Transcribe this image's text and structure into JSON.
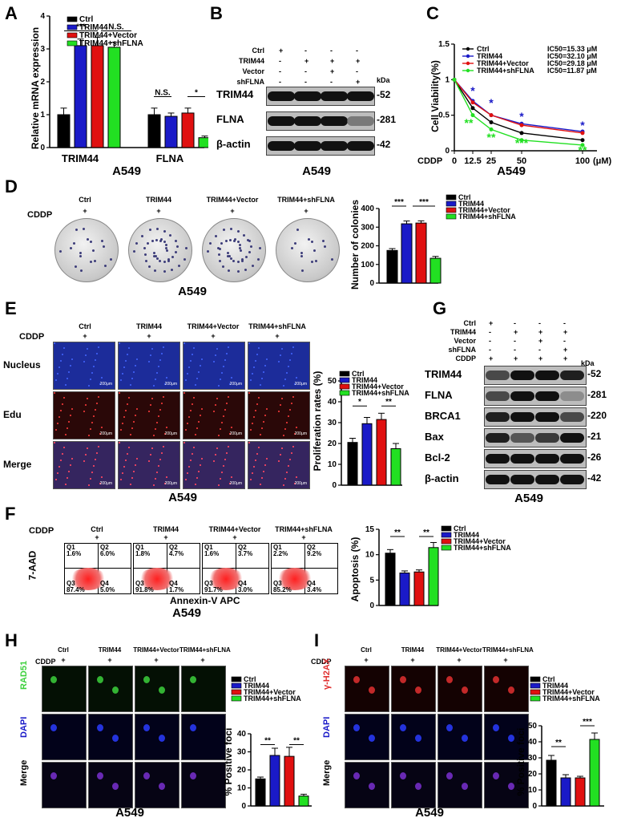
{
  "groups": [
    "Ctrl",
    "TRIM44",
    "TRIM44+Vector",
    "TRIM44+shFLNA"
  ],
  "colors": {
    "ctrl": "#000000",
    "trim44": "#1a1ac8",
    "vector": "#e01010",
    "shflna": "#22e022"
  },
  "cell_line": "A549",
  "panelA": {
    "letter": "A",
    "ylabel": "Relative mRNA expression",
    "caption": "A549",
    "sig": [
      "***",
      "N.S.",
      "N.S.",
      "*"
    ]
  },
  "panelB": {
    "letter": "B",
    "caption": "A549",
    "rows": [
      "Ctrl",
      "TRIM44",
      "Vector",
      "shFLNA"
    ],
    "signs": [
      [
        "+",
        "-",
        "-",
        "-"
      ],
      [
        "-",
        "+",
        "+",
        "+"
      ],
      [
        "-",
        "-",
        "+",
        "-"
      ],
      [
        "-",
        "-",
        "-",
        "+"
      ]
    ],
    "kda": "kDa",
    "proteins": [
      "TRIM44",
      "FLNA",
      "β-actin"
    ],
    "sizes": [
      "52",
      "281",
      "42"
    ]
  },
  "panelC": {
    "letter": "C",
    "ylabel": "Cell Viability(%)",
    "xprefix": "CDDP",
    "xunit": "(μM)",
    "caption": "A549",
    "ic50": [
      "IC50=15.33 μM",
      "IC50=32.10 μM",
      "IC50=29.18 μM",
      "IC50=11.87 μM"
    ]
  },
  "panelD": {
    "letter": "D",
    "cddp": "CDDP",
    "plus": "+",
    "caption": "A549",
    "ylabel": "Number of colonies",
    "sig": [
      "***",
      "***"
    ]
  },
  "panelE": {
    "letter": "E",
    "cddp": "CDDP",
    "plus": "+",
    "rows": [
      "Nucleus",
      "Edu",
      "Merge"
    ],
    "scale": "200μm",
    "caption": "A549",
    "ylabel": "Proliferation rates (%)",
    "sig": [
      "*",
      "**"
    ]
  },
  "panelF": {
    "letter": "F",
    "cddp": "CDDP",
    "plus": "+",
    "yaxis": "7-AAD",
    "xaxis": "Annexin-V APC",
    "caption": "A549",
    "quads": [
      [
        "Q1",
        "1.6%",
        "Q2",
        "6.0%",
        "Q3",
        "87.4%",
        "Q4",
        "5.0%"
      ],
      [
        "Q1",
        "1.8%",
        "Q2",
        "4.7%",
        "Q3",
        "91.8%",
        "Q4",
        "1.7%"
      ],
      [
        "Q1",
        "1.6%",
        "Q2",
        "3.7%",
        "Q3",
        "91.7%",
        "Q4",
        "3.0%"
      ],
      [
        "Q1",
        "2.2%",
        "Q2",
        "9.2%",
        "Q3",
        "85.2%",
        "Q4",
        "3.4%"
      ]
    ],
    "ylabel": "Apoptosis (%)",
    "sig": [
      "**",
      "**"
    ]
  },
  "panelG": {
    "letter": "G",
    "rows": [
      "Ctrl",
      "TRIM44",
      "Vector",
      "shFLNA",
      "CDDP"
    ],
    "signs": [
      [
        "+",
        "-",
        "-",
        "-"
      ],
      [
        "-",
        "+",
        "+",
        "+"
      ],
      [
        "-",
        "-",
        "+",
        "-"
      ],
      [
        "-",
        "-",
        "-",
        "+"
      ],
      [
        "+",
        "+",
        "+",
        "+"
      ]
    ],
    "kda": "kDa",
    "proteins": [
      "TRIM44",
      "FLNA",
      "BRCA1",
      "Bax",
      "Bcl-2",
      "β-actin"
    ],
    "sizes": [
      "52",
      "281",
      "220",
      "21",
      "26",
      "42"
    ],
    "caption": "A549"
  },
  "panelH": {
    "letter": "H",
    "cddp": "CDDP",
    "plus": "+",
    "rows": [
      "RAD51",
      "DAPI",
      "Merge"
    ],
    "caption": "A549",
    "ylabel": "% Positive foci",
    "sig": [
      "**",
      "**"
    ]
  },
  "panelI": {
    "letter": "I",
    "cddp": "CDDP",
    "plus": "+",
    "rows": [
      "γ-H2AX",
      "DAPI",
      "Merge"
    ],
    "caption": "A549",
    "ylabel": "% Positive foci",
    "sig": [
      "**",
      "***"
    ]
  },
  "chart_data": [
    {
      "panel": "A",
      "type": "bar",
      "categories": [
        "TRIM44",
        "FLNA"
      ],
      "ylim": [
        0,
        4
      ],
      "series": [
        {
          "name": "Ctrl",
          "values": [
            1.0,
            1.0
          ]
        },
        {
          "name": "TRIM44",
          "values": [
            3.1,
            0.95
          ]
        },
        {
          "name": "TRIM44+Vector",
          "values": [
            3.1,
            1.05
          ]
        },
        {
          "name": "TRIM44+shFLNA",
          "values": [
            3.05,
            0.3
          ]
        }
      ],
      "errors": [
        [
          0.2,
          0.2
        ],
        [
          0.2,
          0.1
        ],
        [
          0.25,
          0.15
        ],
        [
          0.15,
          0.05
        ]
      ]
    },
    {
      "panel": "C",
      "type": "line",
      "x": [
        0,
        12.5,
        25,
        50,
        100
      ],
      "xticks": [
        "0",
        "12.5",
        "25",
        "50",
        "100"
      ],
      "ylim": [
        0,
        1.5
      ],
      "series": [
        {
          "name": "Ctrl",
          "values": [
            1.0,
            0.6,
            0.4,
            0.25,
            0.15
          ]
        },
        {
          "name": "TRIM44",
          "values": [
            1.0,
            0.7,
            0.5,
            0.38,
            0.27
          ]
        },
        {
          "name": "TRIM44+Vector",
          "values": [
            1.0,
            0.68,
            0.5,
            0.36,
            0.25
          ]
        },
        {
          "name": "TRIM44+shFLNA",
          "values": [
            1.0,
            0.5,
            0.3,
            0.15,
            0.08
          ]
        }
      ]
    },
    {
      "panel": "D",
      "type": "bar",
      "categories": [
        "Ctrl",
        "TRIM44",
        "TRIM44+Vector",
        "TRIM44+shFLNA"
      ],
      "ylim": [
        0,
        400
      ],
      "values": [
        175,
        318,
        322,
        133
      ],
      "errors": [
        10,
        15,
        12,
        10
      ]
    },
    {
      "panel": "E",
      "type": "bar",
      "categories": [
        "Ctrl",
        "TRIM44",
        "TRIM44+Vector",
        "TRIM44+shFLNA"
      ],
      "ylim": [
        0,
        50
      ],
      "values": [
        20.5,
        29.5,
        31.5,
        17.5
      ],
      "errors": [
        2,
        3,
        3,
        2.5
      ]
    },
    {
      "panel": "F",
      "type": "bar",
      "categories": [
        "Ctrl",
        "TRIM44",
        "TRIM44+Vector",
        "TRIM44+shFLNA"
      ],
      "ylim": [
        0,
        15
      ],
      "values": [
        10.3,
        6.4,
        6.6,
        11.4
      ],
      "errors": [
        0.7,
        0.4,
        0.4,
        1.0
      ]
    },
    {
      "panel": "H",
      "type": "bar",
      "categories": [
        "Ctrl",
        "TRIM44",
        "TRIM44+Vector",
        "TRIM44+shFLNA"
      ],
      "ylim": [
        0,
        40
      ],
      "values": [
        15,
        28,
        27.5,
        5.5
      ],
      "errors": [
        1,
        4,
        5,
        1
      ]
    },
    {
      "panel": "I",
      "type": "bar",
      "categories": [
        "Ctrl",
        "TRIM44",
        "TRIM44+Vector",
        "TRIM44+shFLNA"
      ],
      "ylim": [
        0,
        50
      ],
      "values": [
        28.5,
        17.5,
        17.5,
        41.5
      ],
      "errors": [
        3,
        2,
        1,
        4
      ]
    }
  ]
}
